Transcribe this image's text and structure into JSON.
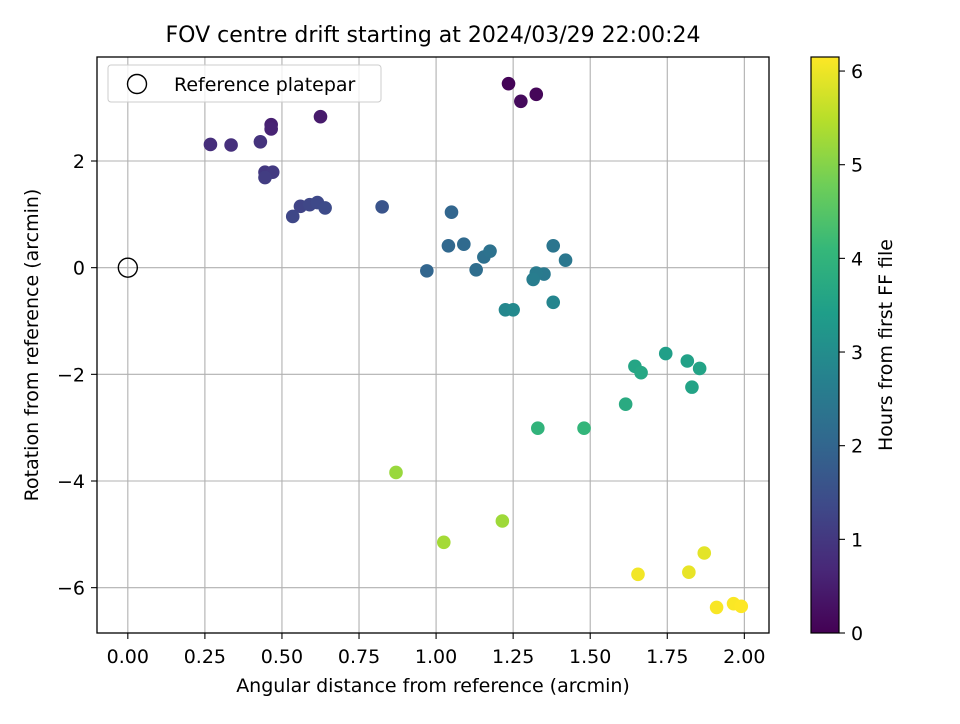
{
  "chart_data": {
    "type": "scatter",
    "title": "FOV centre drift starting at 2024/03/29 22:00:24",
    "xlabel": "Angular distance from reference (arcmin)",
    "ylabel": "Rotation from reference (arcmin)",
    "xlim": [
      -0.1,
      2.08
    ],
    "ylim": [
      -6.85,
      3.95
    ],
    "xticks": [
      0.0,
      0.25,
      0.5,
      0.75,
      1.0,
      1.25,
      1.5,
      1.75,
      2.0
    ],
    "xtick_labels": [
      "0.00",
      "0.25",
      "0.50",
      "0.75",
      "1.00",
      "1.25",
      "1.50",
      "1.75",
      "2.00"
    ],
    "yticks": [
      2,
      0,
      -2,
      -4,
      -6
    ],
    "ytick_labels": [
      "2",
      "0",
      "−2",
      "−4",
      "−6"
    ],
    "grid": true,
    "legend": {
      "placement": "upper-left",
      "entries": [
        "Reference platepar"
      ]
    },
    "reference_point": {
      "x": 0.0,
      "y": 0.0,
      "marker": "open-circle"
    },
    "colorbar": {
      "label": "Hours from first FF file",
      "colormap": "viridis",
      "range": [
        0,
        6.15
      ],
      "ticks": [
        0,
        1,
        2,
        3,
        4,
        5,
        6
      ],
      "tick_labels": [
        "0",
        "1",
        "2",
        "3",
        "4",
        "5",
        "6"
      ],
      "colors": [
        "#440154",
        "#482878",
        "#3e4a89",
        "#31688e",
        "#26828e",
        "#1f9e89",
        "#35b779",
        "#6ece58",
        "#b5de2b",
        "#fde725"
      ]
    },
    "points": [
      {
        "x": 1.235,
        "y": 3.45,
        "hours": 0.05
      },
      {
        "x": 1.325,
        "y": 3.25,
        "hours": 0.1
      },
      {
        "x": 1.275,
        "y": 3.12,
        "hours": 0.15
      },
      {
        "x": 0.625,
        "y": 2.83,
        "hours": 0.45
      },
      {
        "x": 0.465,
        "y": 2.68,
        "hours": 0.55
      },
      {
        "x": 0.465,
        "y": 2.6,
        "hours": 0.6
      },
      {
        "x": 0.268,
        "y": 2.31,
        "hours": 0.8
      },
      {
        "x": 0.335,
        "y": 2.3,
        "hours": 0.85
      },
      {
        "x": 0.43,
        "y": 2.36,
        "hours": 0.9
      },
      {
        "x": 0.445,
        "y": 1.79,
        "hours": 1.0
      },
      {
        "x": 0.47,
        "y": 1.79,
        "hours": 1.05
      },
      {
        "x": 0.445,
        "y": 1.69,
        "hours": 1.1
      },
      {
        "x": 0.56,
        "y": 1.15,
        "hours": 1.25
      },
      {
        "x": 0.59,
        "y": 1.18,
        "hours": 1.3
      },
      {
        "x": 0.615,
        "y": 1.22,
        "hours": 1.35
      },
      {
        "x": 0.64,
        "y": 1.12,
        "hours": 1.4
      },
      {
        "x": 0.535,
        "y": 0.96,
        "hours": 1.3
      },
      {
        "x": 0.825,
        "y": 1.14,
        "hours": 1.6
      },
      {
        "x": 1.05,
        "y": 1.04,
        "hours": 2.0
      },
      {
        "x": 1.04,
        "y": 0.41,
        "hours": 2.05
      },
      {
        "x": 1.09,
        "y": 0.44,
        "hours": 2.1
      },
      {
        "x": 0.97,
        "y": -0.06,
        "hours": 2.0
      },
      {
        "x": 1.13,
        "y": -0.04,
        "hours": 2.2
      },
      {
        "x": 1.155,
        "y": 0.2,
        "hours": 2.25
      },
      {
        "x": 1.175,
        "y": 0.31,
        "hours": 2.3
      },
      {
        "x": 1.38,
        "y": 0.41,
        "hours": 2.4
      },
      {
        "x": 1.42,
        "y": 0.14,
        "hours": 2.45
      },
      {
        "x": 1.35,
        "y": -0.12,
        "hours": 2.5
      },
      {
        "x": 1.325,
        "y": -0.1,
        "hours": 2.55
      },
      {
        "x": 1.315,
        "y": -0.22,
        "hours": 2.6
      },
      {
        "x": 1.225,
        "y": -0.79,
        "hours": 2.85
      },
      {
        "x": 1.25,
        "y": -0.79,
        "hours": 2.9
      },
      {
        "x": 1.38,
        "y": -0.65,
        "hours": 2.8
      },
      {
        "x": 1.745,
        "y": -1.61,
        "hours": 3.45
      },
      {
        "x": 1.815,
        "y": -1.75,
        "hours": 3.5
      },
      {
        "x": 1.855,
        "y": -1.89,
        "hours": 3.55
      },
      {
        "x": 1.645,
        "y": -1.85,
        "hours": 3.6
      },
      {
        "x": 1.665,
        "y": -1.97,
        "hours": 3.65
      },
      {
        "x": 1.83,
        "y": -2.24,
        "hours": 3.55
      },
      {
        "x": 1.615,
        "y": -2.56,
        "hours": 3.75
      },
      {
        "x": 1.33,
        "y": -3.01,
        "hours": 4.0
      },
      {
        "x": 1.48,
        "y": -3.01,
        "hours": 4.05
      },
      {
        "x": 0.87,
        "y": -3.84,
        "hours": 5.2
      },
      {
        "x": 1.215,
        "y": -4.75,
        "hours": 5.25
      },
      {
        "x": 1.025,
        "y": -5.15,
        "hours": 5.3
      },
      {
        "x": 1.655,
        "y": -5.75,
        "hours": 6.05
      },
      {
        "x": 1.82,
        "y": -5.71,
        "hours": 5.95
      },
      {
        "x": 1.87,
        "y": -5.35,
        "hours": 5.9
      },
      {
        "x": 1.91,
        "y": -6.37,
        "hours": 6.1
      },
      {
        "x": 1.965,
        "y": -6.3,
        "hours": 6.12
      },
      {
        "x": 1.99,
        "y": -6.35,
        "hours": 6.15
      }
    ]
  }
}
